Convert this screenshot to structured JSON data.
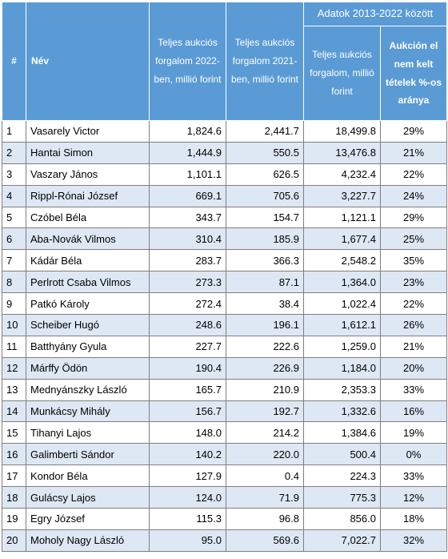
{
  "table": {
    "headers": {
      "index": "#",
      "name": "Név",
      "total_2022": "Teljes aukciós forgalom 2022-ben, millió forint",
      "total_2021": "Teljes aukciós forgalom 2021-ben, millió forint",
      "group": "Adatok 2013-2022 között",
      "total_2013_2022": "Teljes aukciós forgalom, millió forint",
      "unsold_share": "Aukción el nem kelt tételek %-os aránya"
    },
    "rows": [
      {
        "idx": "1",
        "name": "Vasarely Victor",
        "v2022": "1,824.6",
        "v2021": "2,441.7",
        "total": "18,499.8",
        "unsold": "29%"
      },
      {
        "idx": "2",
        "name": "Hantai Simon",
        "v2022": "1,444.9",
        "v2021": "550.5",
        "total": "13,476.8",
        "unsold": "21%"
      },
      {
        "idx": "3",
        "name": "Vaszary János",
        "v2022": "1,101.1",
        "v2021": "626.5",
        "total": "4,232.4",
        "unsold": "22%"
      },
      {
        "idx": "4",
        "name": "Rippl-Rónai József",
        "v2022": "669.1",
        "v2021": "705.6",
        "total": "3,227.7",
        "unsold": "24%"
      },
      {
        "idx": "5",
        "name": "Czóbel Béla",
        "v2022": "343.7",
        "v2021": "154.7",
        "total": "1,121.1",
        "unsold": "29%"
      },
      {
        "idx": "6",
        "name": "Aba-Novák Vilmos",
        "v2022": "310.4",
        "v2021": "185.9",
        "total": "1,677.4",
        "unsold": "25%"
      },
      {
        "idx": "7",
        "name": "Kádár Béla",
        "v2022": "283.7",
        "v2021": "366.3",
        "total": "2,548.2",
        "unsold": "35%"
      },
      {
        "idx": "8",
        "name": "Perlrott Csaba Vilmos",
        "v2022": "273.3",
        "v2021": "87.1",
        "total": "1,364.0",
        "unsold": "23%"
      },
      {
        "idx": "9",
        "name": "Patkó Károly",
        "v2022": "272.4",
        "v2021": "38.4",
        "total": "1,022.4",
        "unsold": "22%"
      },
      {
        "idx": "10",
        "name": "Scheiber Hugó",
        "v2022": "248.6",
        "v2021": "196.1",
        "total": "1,612.1",
        "unsold": "26%"
      },
      {
        "idx": "11",
        "name": "Batthyány Gyula",
        "v2022": "227.7",
        "v2021": "222.6",
        "total": "1,259.0",
        "unsold": "21%"
      },
      {
        "idx": "12",
        "name": "Márffy Ödön",
        "v2022": "190.4",
        "v2021": "226.9",
        "total": "1,184.0",
        "unsold": "20%"
      },
      {
        "idx": "13",
        "name": "Mednyánszky László",
        "v2022": "165.7",
        "v2021": "210.9",
        "total": "2,353.3",
        "unsold": "33%"
      },
      {
        "idx": "14",
        "name": "Munkácsy Mihály",
        "v2022": "156.7",
        "v2021": "192.7",
        "total": "1,332.6",
        "unsold": "16%"
      },
      {
        "idx": "15",
        "name": "Tihanyi Lajos",
        "v2022": "148.0",
        "v2021": "214.2",
        "total": "1,384.6",
        "unsold": "19%"
      },
      {
        "idx": "16",
        "name": "Galimberti Sándor",
        "v2022": "140.2",
        "v2021": "220.0",
        "total": "500.4",
        "unsold": "0%"
      },
      {
        "idx": "17",
        "name": "Kondor Béla",
        "v2022": "127.9",
        "v2021": "0.4",
        "total": "224.3",
        "unsold": "33%"
      },
      {
        "idx": "18",
        "name": "Gulácsy Lajos",
        "v2022": "124.0",
        "v2021": "71.9",
        "total": "775.3",
        "unsold": "12%"
      },
      {
        "idx": "19",
        "name": "Egry József",
        "v2022": "115.3",
        "v2021": "96.8",
        "total": "856.0",
        "unsold": "18%"
      },
      {
        "idx": "20",
        "name": "Moholy Nagy László",
        "v2022": "95.0",
        "v2021": "569.6",
        "total": "7,022.7",
        "unsold": "32%"
      }
    ]
  }
}
